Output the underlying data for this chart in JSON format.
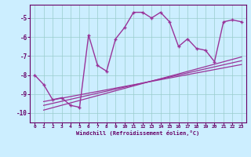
{
  "xlabel": "Windchill (Refroidissement éolien,°C)",
  "background_color": "#cceeff",
  "line_color": "#993399",
  "xlim": [
    -0.5,
    23.5
  ],
  "ylim": [
    -10.5,
    -4.3
  ],
  "yticks": [
    -10,
    -9,
    -8,
    -7,
    -6,
    -5
  ],
  "xticks": [
    0,
    1,
    2,
    3,
    4,
    5,
    6,
    7,
    8,
    9,
    10,
    11,
    12,
    13,
    14,
    15,
    16,
    17,
    18,
    19,
    20,
    21,
    22,
    23
  ],
  "main_x": [
    0,
    1,
    2,
    3,
    4,
    5,
    6,
    7,
    8,
    9,
    10,
    11,
    12,
    13,
    14,
    15,
    16,
    17,
    18,
    19,
    20,
    21,
    22,
    23
  ],
  "main_y": [
    -8.0,
    -8.5,
    -9.3,
    -9.2,
    -9.6,
    -9.7,
    -5.9,
    -7.5,
    -7.8,
    -6.1,
    -5.5,
    -4.7,
    -4.7,
    -5.0,
    -4.7,
    -5.2,
    -6.5,
    -6.1,
    -6.6,
    -6.7,
    -7.3,
    -5.2,
    -5.1,
    -5.2
  ],
  "line2_x": [
    1,
    23
  ],
  "line2_y": [
    -9.85,
    -7.05
  ],
  "line3_x": [
    1,
    23
  ],
  "line3_y": [
    -9.6,
    -7.25
  ],
  "line4_x": [
    1,
    23
  ],
  "line4_y": [
    -9.4,
    -7.45
  ]
}
